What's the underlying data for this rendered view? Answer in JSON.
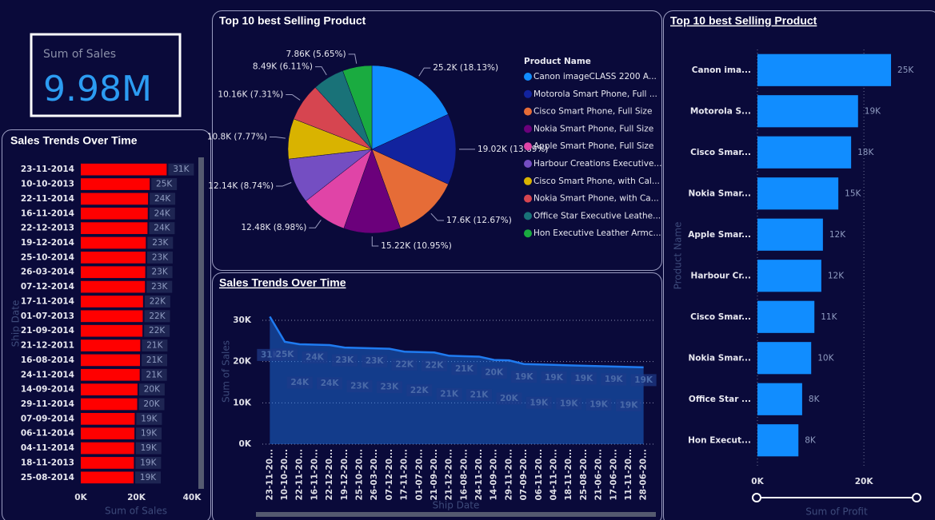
{
  "kpi": {
    "label": "Sum of Sales",
    "value": "9.98M"
  },
  "chart_data": [
    {
      "type": "bar",
      "horizontal": true,
      "title": "Sales Trends Over Time",
      "color": "#ff0000",
      "grid": false,
      "categories": [
        "23-11-2014",
        "10-10-2013",
        "22-11-2014",
        "16-11-2014",
        "22-12-2013",
        "19-12-2014",
        "25-10-2014",
        "26-03-2014",
        "07-12-2014",
        "17-11-2014",
        "01-07-2013",
        "21-09-2014",
        "21-12-2011",
        "16-08-2014",
        "24-11-2014",
        "14-09-2014",
        "29-11-2014",
        "07-09-2014",
        "06-11-2014",
        "04-11-2014",
        "18-11-2013",
        "25-08-2014"
      ],
      "values": [
        30900,
        24800,
        24200,
        24100,
        24000,
        23400,
        23300,
        23200,
        23100,
        22400,
        22300,
        22200,
        21400,
        21300,
        21200,
        20400,
        20300,
        19400,
        19300,
        19200,
        19100,
        19000
      ],
      "value_labels": [
        "31K",
        "25K",
        "24K",
        "24K",
        "24K",
        "23K",
        "23K",
        "23K",
        "23K",
        "22K",
        "22K",
        "22K",
        "21K",
        "21K",
        "21K",
        "20K",
        "20K",
        "19K",
        "19K",
        "19K",
        "19K",
        "19K"
      ],
      "xlim": [
        0,
        40000
      ],
      "xticks": [
        {
          "value": 0,
          "label": "0K"
        },
        {
          "value": 20000,
          "label": "20K"
        },
        {
          "value": 40000,
          "label": "40K"
        }
      ],
      "x_label": "Sum of Sales",
      "y_label": "Ship Date"
    },
    {
      "type": "pie",
      "title": "Top 10 best Selling Product",
      "legend_title": "Product Name",
      "categories": [
        "Canon imageCLASS 2200 A...",
        "Motorola Smart Phone, Full ...",
        "Cisco Smart Phone, Full Size",
        "Nokia Smart Phone, Full Size",
        "Apple Smart Phone, Full Size",
        "Harbour Creations Executive...",
        "Cisco Smart Phone, with Cal...",
        "Nokia Smart Phone, with Ca...",
        "Office Star Executive Leathe...",
        "Hon Executive Leather Armc..."
      ],
      "values": [
        25200,
        19020,
        17600,
        15220,
        12480,
        12140,
        10800,
        10160,
        8490,
        7860
      ],
      "value_labels": [
        "25.2K (18.13%)",
        "19.02K (13.69%)",
        "17.6K (12.67%)",
        "15.22K (10.95%)",
        "12.48K (8.98%)",
        "12.14K (8.74%)",
        "10.8K (7.77%)",
        "10.16K (7.31%)",
        "8.49K (6.11%)",
        "7.86K (5.65%)"
      ],
      "colors": [
        "#118dff",
        "#12239e",
        "#e66c37",
        "#6b007b",
        "#e044a7",
        "#744ec2",
        "#d9b300",
        "#d64550",
        "#197278",
        "#1aab40"
      ]
    },
    {
      "type": "area",
      "title": "Sales Trends Over Time",
      "title_underline": true,
      "color": "#1f7bf0",
      "grid": true,
      "categories": [
        "23-11-20...",
        "10-10-20...",
        "22-11-20...",
        "16-11-20...",
        "22-12-20...",
        "19-12-20...",
        "25-10-20...",
        "26-03-20...",
        "07-12-20...",
        "17-11-20...",
        "01-07-20...",
        "21-09-20...",
        "21-12-20...",
        "16-08-20...",
        "24-11-20...",
        "14-09-20...",
        "29-11-20...",
        "07-09-20...",
        "06-11-20...",
        "04-11-20...",
        "18-11-20...",
        "25-08-20...",
        "21-06-20...",
        "17-06-20...",
        "11-11-20...",
        "28-06-20..."
      ],
      "values": [
        30900,
        24800,
        24200,
        24100,
        24000,
        23400,
        23300,
        23200,
        23100,
        22400,
        22300,
        22200,
        21400,
        21300,
        21200,
        20400,
        20300,
        19400,
        19300,
        19200,
        19100,
        19000,
        18900,
        18800,
        18700,
        18600
      ],
      "value_labels": [
        "31K",
        "25K",
        "24K",
        "24K",
        "24K",
        "23K",
        "23K",
        "23K",
        "23K",
        "22K",
        "22K",
        "22K",
        "21K",
        "21K",
        "21K",
        "20K",
        "20K",
        "19K",
        "19K",
        "19K",
        "19K",
        "19K",
        "19K",
        "19K",
        "19K",
        "19K"
      ],
      "ylim": [
        0,
        33000
      ],
      "yticks": [
        {
          "value": 0,
          "label": "0K"
        },
        {
          "value": 10000,
          "label": "10K"
        },
        {
          "value": 20000,
          "label": "20K"
        },
        {
          "value": 30000,
          "label": "30K"
        }
      ],
      "x_label": "Ship Date",
      "y_label": "Sum of Sales"
    },
    {
      "type": "bar",
      "horizontal": true,
      "title": "Top 10 best Selling Product",
      "title_underline": true,
      "color": "#118dff",
      "grid": true,
      "categories": [
        "Canon ima...",
        "Motorola S...",
        "Cisco Smar...",
        "Nokia Smar...",
        "Apple Smar...",
        "Harbour Cr...",
        "Cisco Smar...",
        "Nokia Smar...",
        "Office Star ...",
        "Hon Execut..."
      ],
      "values": [
        25100,
        18900,
        17600,
        15200,
        12300,
        12000,
        10700,
        10100,
        8400,
        7700
      ],
      "value_labels": [
        "25K",
        "19K",
        "18K",
        "15K",
        "12K",
        "12K",
        "11K",
        "10K",
        "8K",
        "8K"
      ],
      "xlim": [
        0,
        29000
      ],
      "xticks": [
        {
          "value": 0,
          "label": "0K"
        },
        {
          "value": 20000,
          "label": "20K"
        }
      ],
      "x_label": "Sum of Profit",
      "y_label": "Product Name"
    }
  ]
}
